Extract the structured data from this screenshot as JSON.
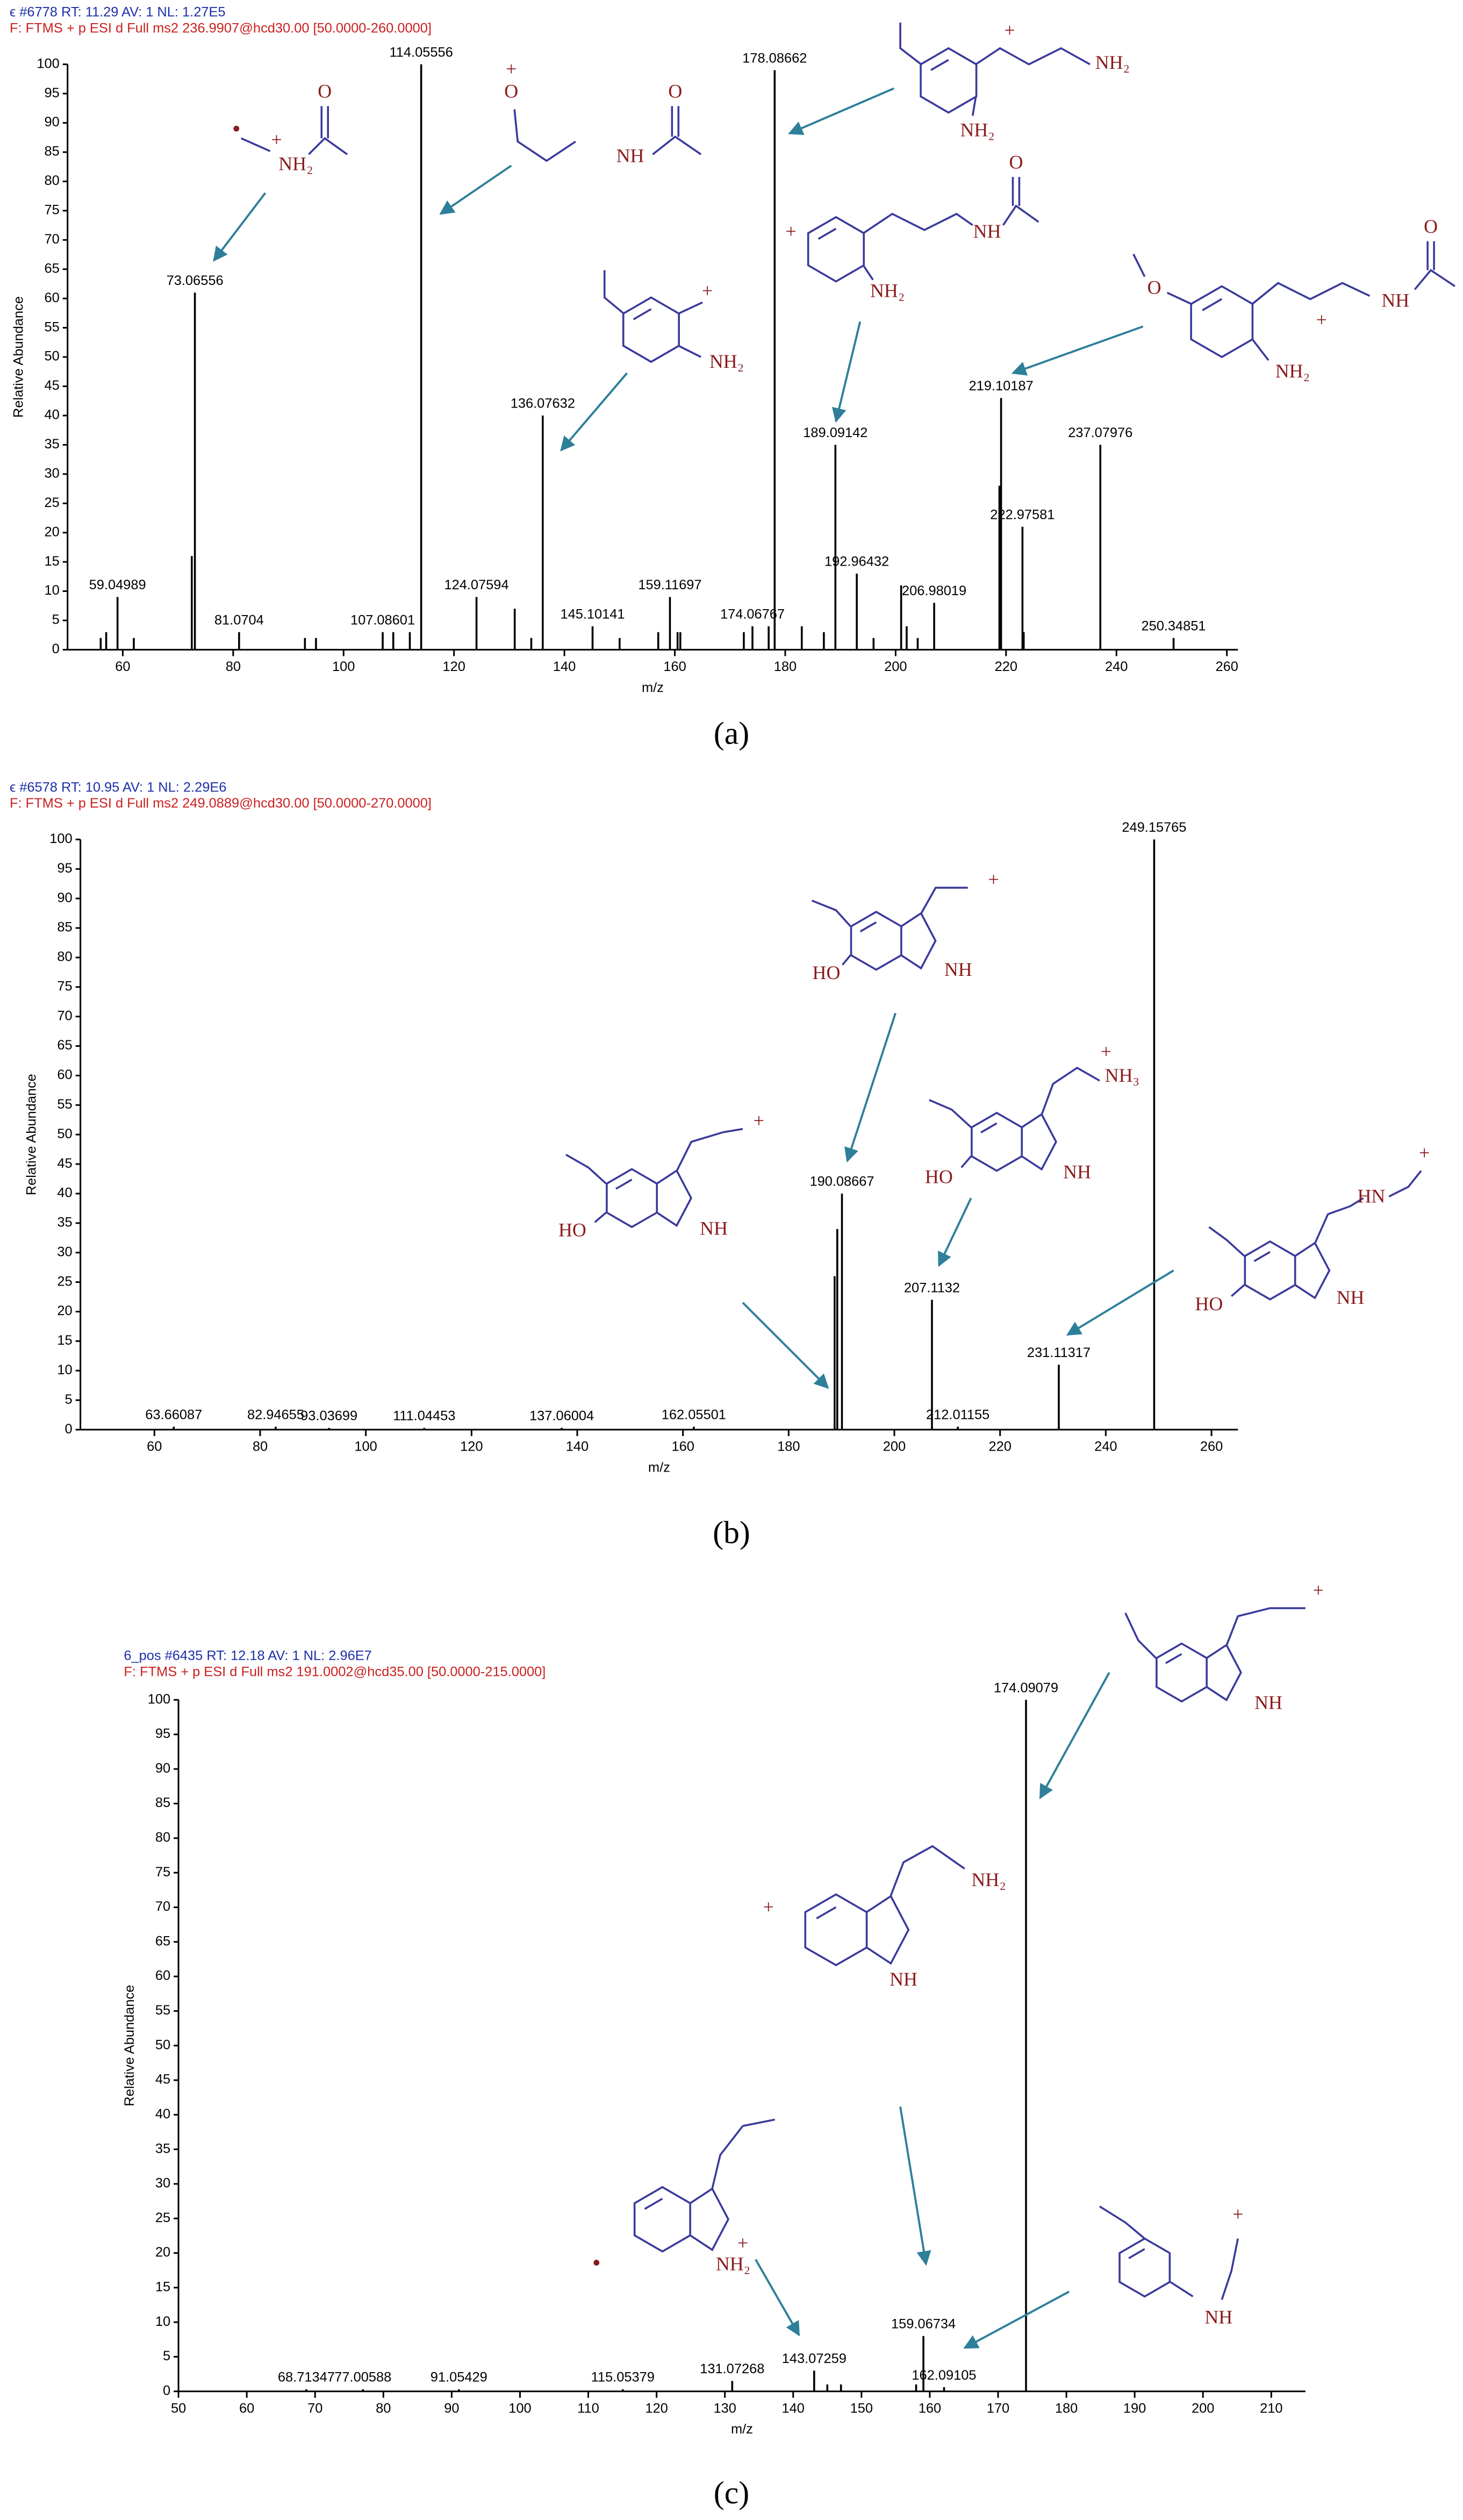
{
  "chart_data": [
    {
      "type": "spectrum",
      "header": "ϵ #6778 RT: 11.29 AV: 1 NL: 1.27E5",
      "subheader": "F: FTMS + p ESI d Full ms2 236.9907@hcd30.00 [50.0000-260.0000]",
      "caption": "(a)",
      "x_label": "m/z",
      "y_label": "Relative Abundance",
      "color": "#000000",
      "xlim": [
        50,
        262
      ],
      "xticks": [
        60,
        80,
        100,
        120,
        140,
        160,
        180,
        200,
        220,
        240,
        260
      ],
      "ylim": [
        0,
        100
      ],
      "yticks": [
        0,
        5,
        10,
        15,
        20,
        25,
        30,
        35,
        40,
        45,
        50,
        55,
        60,
        65,
        70,
        75,
        80,
        85,
        90,
        95,
        100
      ],
      "x": [
        59.04989,
        73.06556,
        81.0704,
        107.08601,
        114.05556,
        124.07594,
        136.07632,
        145.10141,
        159.11697,
        174.06767,
        178.08662,
        189.09142,
        192.96432,
        206.98019,
        219.10187,
        222.97581,
        237.07976,
        250.34851
      ],
      "values": [
        9,
        61,
        3,
        3,
        100,
        9,
        40,
        4,
        9,
        4,
        99,
        35,
        13,
        8,
        43,
        21,
        35,
        2
      ],
      "minor_x": [
        56,
        57,
        62,
        72.5,
        93,
        95,
        109,
        112,
        131,
        134,
        150,
        157,
        160.5,
        161,
        172.5,
        177,
        183,
        187,
        196,
        201,
        202,
        204,
        218.8,
        223.2
      ],
      "minor_values": [
        2,
        3,
        2,
        16,
        2,
        2,
        3,
        3,
        7,
        2,
        2,
        3,
        3,
        3,
        3,
        4,
        4,
        3,
        2,
        11,
        4,
        2,
        28,
        3
      ],
      "structures": [
        {
          "labels": [
            "+",
            "NH₂",
            "O"
          ]
        },
        {
          "labels": [
            "+",
            "O",
            "NH",
            "O"
          ]
        },
        {
          "labels": [
            "+",
            "NH₂",
            "NH₂"
          ]
        },
        {
          "labels": [
            "+",
            "NH₂"
          ]
        },
        {
          "labels": [
            "+",
            "NH",
            "O",
            "NH₂"
          ]
        },
        {
          "labels": [
            "O",
            "+",
            "NH",
            "O",
            "NH₂"
          ]
        }
      ]
    },
    {
      "type": "spectrum",
      "header": "ϵ #6578 RT: 10.95 AV: 1 NL: 2.29E6",
      "subheader": "F: FTMS + p ESI d Full ms2 249.0889@hcd30.00 [50.0000-270.0000]",
      "caption": "(b)",
      "x_label": "m/z",
      "y_label": "Relative Abundance",
      "color": "#000000",
      "xlim": [
        46,
        265
      ],
      "xticks": [
        60,
        80,
        100,
        120,
        140,
        160,
        180,
        200,
        220,
        240,
        260
      ],
      "ylim": [
        0,
        100
      ],
      "yticks": [
        0,
        5,
        10,
        15,
        20,
        25,
        30,
        35,
        40,
        45,
        50,
        55,
        60,
        65,
        70,
        75,
        80,
        85,
        90,
        95,
        100
      ],
      "x": [
        63.66087,
        82.94655,
        93.03699,
        111.04453,
        137.06004,
        162.05501,
        190.08667,
        207.1132,
        212.01155,
        231.11317,
        249.15765
      ],
      "values": [
        0.5,
        0.5,
        0.3,
        0.3,
        0.3,
        0.5,
        40,
        22,
        0.5,
        11,
        100
      ],
      "minor_x": [
        189.2,
        188.7
      ],
      "minor_values": [
        34,
        26
      ],
      "structures": [
        {
          "labels": [
            "+",
            "HO",
            "NH"
          ]
        },
        {
          "labels": [
            "NH₃",
            "+",
            "HO",
            "NH"
          ]
        },
        {
          "labels": [
            "+",
            "HO",
            "NH"
          ]
        },
        {
          "labels": [
            "HN",
            "+",
            "HO",
            "NH"
          ]
        }
      ]
    },
    {
      "type": "spectrum",
      "header": "6_pos #6435 RT: 12.18 AV: 1 NL: 2.96E7",
      "subheader": "F: FTMS + p ESI d Full ms2 191.0002@hcd35.00 [50.0000-215.0000]",
      "caption": "(c)",
      "x_label": "m/z",
      "y_label": "Relative Abundance",
      "color": "#000000",
      "xlim": [
        50,
        215
      ],
      "xticks": [
        50,
        60,
        70,
        80,
        90,
        100,
        110,
        120,
        130,
        140,
        150,
        160,
        170,
        180,
        190,
        200,
        210
      ],
      "ylim": [
        0,
        100
      ],
      "yticks": [
        0,
        5,
        10,
        15,
        20,
        25,
        30,
        35,
        40,
        45,
        50,
        55,
        60,
        65,
        70,
        75,
        80,
        85,
        90,
        95,
        100
      ],
      "x": [
        68.71347,
        77.00588,
        91.05429,
        115.05379,
        131.07268,
        143.07259,
        159.06734,
        162.09105,
        174.09079
      ],
      "values": [
        0.3,
        0.3,
        0.3,
        0.3,
        1.5,
        3,
        8,
        0.6,
        100
      ],
      "minor_x": [
        145,
        147,
        158
      ],
      "minor_values": [
        1,
        1,
        1
      ],
      "structures": [
        {
          "labels": [
            "+",
            "NH"
          ]
        },
        {
          "labels": [
            "NH₂",
            "+",
            "NH"
          ]
        },
        {
          "labels": [
            "+",
            "NH₂"
          ]
        },
        {
          "labels": [
            "+",
            "NH"
          ]
        }
      ]
    }
  ]
}
